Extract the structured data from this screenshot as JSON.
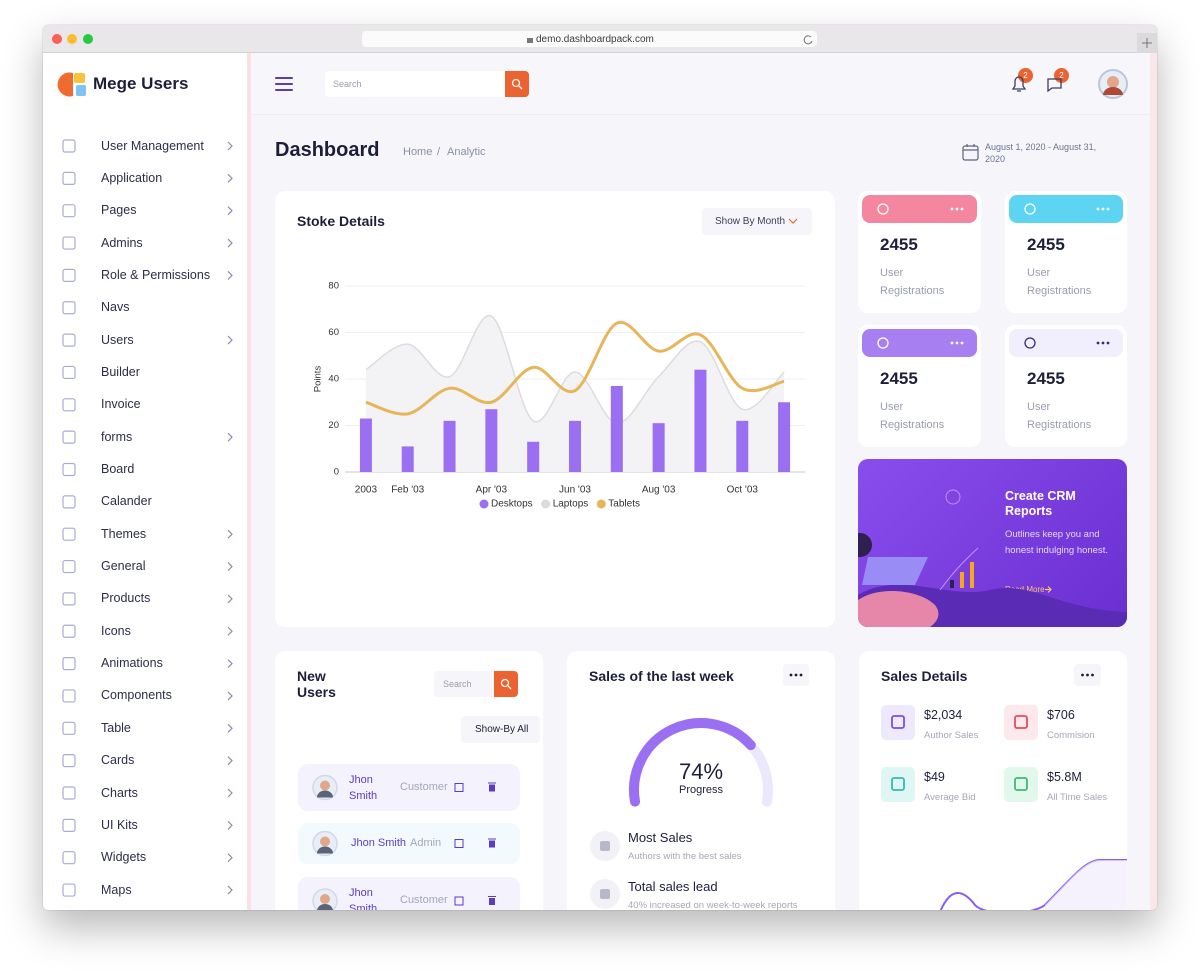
{
  "browser": {
    "url": "demo.dashboardpack.com"
  },
  "sidebar": {
    "brand": "Mege Users",
    "menu": [
      {
        "label": "User Management",
        "submenu": true
      },
      {
        "label": "Application",
        "submenu": true
      },
      {
        "label": "Pages",
        "submenu": true
      },
      {
        "label": "Admins",
        "submenu": true
      },
      {
        "label": "Role & Permissions",
        "submenu": true
      },
      {
        "label": "Navs",
        "submenu": false
      },
      {
        "label": "Users",
        "submenu": true
      },
      {
        "label": "Builder",
        "submenu": false
      },
      {
        "label": "Invoice",
        "submenu": false
      },
      {
        "label": "forms",
        "submenu": true
      },
      {
        "label": "Board",
        "submenu": false
      },
      {
        "label": "Calander",
        "submenu": false
      },
      {
        "label": "Themes",
        "submenu": true
      },
      {
        "label": "General",
        "submenu": true
      },
      {
        "label": "Products",
        "submenu": true
      },
      {
        "label": "Icons",
        "submenu": true
      },
      {
        "label": "Animations",
        "submenu": true
      },
      {
        "label": "Components",
        "submenu": true
      },
      {
        "label": "Table",
        "submenu": true
      },
      {
        "label": "Cards",
        "submenu": true
      },
      {
        "label": "Charts",
        "submenu": true
      },
      {
        "label": "UI Kits",
        "submenu": true
      },
      {
        "label": "Widgets",
        "submenu": true
      },
      {
        "label": "Maps",
        "submenu": true
      }
    ]
  },
  "topbar": {
    "search_placeholder": "Search",
    "notification_count": 2,
    "message_count": 2
  },
  "header": {
    "title": "Dashboard",
    "breadcrumb": [
      "Home",
      "Analytic"
    ],
    "breadcrumb_separator": "/",
    "date_range": "August 1, 2020 - August 31, 2020"
  },
  "stoke_card": {
    "filter": "Show By Month"
  },
  "chart_data": {
    "type": "combo",
    "title": "Stoke Details",
    "y_label": "Points",
    "categories": [
      "2003",
      "Feb '03",
      null,
      "Apr '03",
      null,
      "Jun '03",
      null,
      "Aug '03",
      null,
      "Oct '03",
      null
    ],
    "series": [
      {
        "name": "Desktops",
        "type": "bar",
        "color": "#9a6ff2",
        "values": [
          23,
          11,
          22,
          27,
          13,
          22,
          37,
          21,
          44,
          22,
          30
        ]
      },
      {
        "name": "Laptops",
        "type": "area",
        "color": "#dcdcdf",
        "values": [
          44,
          55,
          41,
          67,
          22,
          43,
          21,
          41,
          56,
          27,
          43
        ]
      },
      {
        "name": "Tablets",
        "type": "line",
        "color": "#e8b55a",
        "values": [
          30,
          25,
          36,
          30,
          45,
          35,
          64,
          52,
          59,
          36,
          39
        ]
      }
    ],
    "ylim": [
      0,
      80
    ],
    "yticks": [
      0,
      20,
      40,
      60,
      80
    ],
    "grid": true,
    "legend": "bottom"
  },
  "stat_cards": [
    {
      "value": 2455,
      "label": "User Registrations",
      "color": "#f5869f"
    },
    {
      "value": 2455,
      "label": "User Registrations",
      "color": "#5ed4f3"
    },
    {
      "value": 2455,
      "label": "User Registrations",
      "color": "#a77ff1"
    },
    {
      "value": 2455,
      "label": "User Registrations",
      "color": "#f1effd"
    }
  ],
  "crm_card": {
    "title": "Create CRM Reports",
    "text": "Outlines keep you and honest indulging honest.",
    "link": "Read More"
  },
  "new_users": {
    "title": "New Users",
    "search_placeholder": "Search",
    "filter": "Show-By All",
    "users": [
      {
        "name": "Jhon Smith",
        "role": "Customer"
      },
      {
        "name": "Jhon Smith",
        "role": "Admin"
      },
      {
        "name": "Jhon Smith",
        "role": "Customer"
      }
    ]
  },
  "sales_week": {
    "title": "Sales of the last week",
    "progress": {
      "value": 74,
      "label": "74%"
    },
    "progress_caption": "Progress",
    "items": [
      {
        "title": "Most Sales",
        "subtitle": "Authors with the best sales"
      },
      {
        "title": "Total sales lead",
        "subtitle": "40% increased on week-to-week reports"
      }
    ]
  },
  "sales_details": {
    "title": "Sales Details",
    "items": [
      {
        "value": "$2,034",
        "label": "Author Sales"
      },
      {
        "value": "$706",
        "label": "Commision"
      },
      {
        "value": "$49",
        "label": "Average Bid"
      },
      {
        "value": "$5.8M",
        "label": "All Time Sales"
      }
    ]
  }
}
